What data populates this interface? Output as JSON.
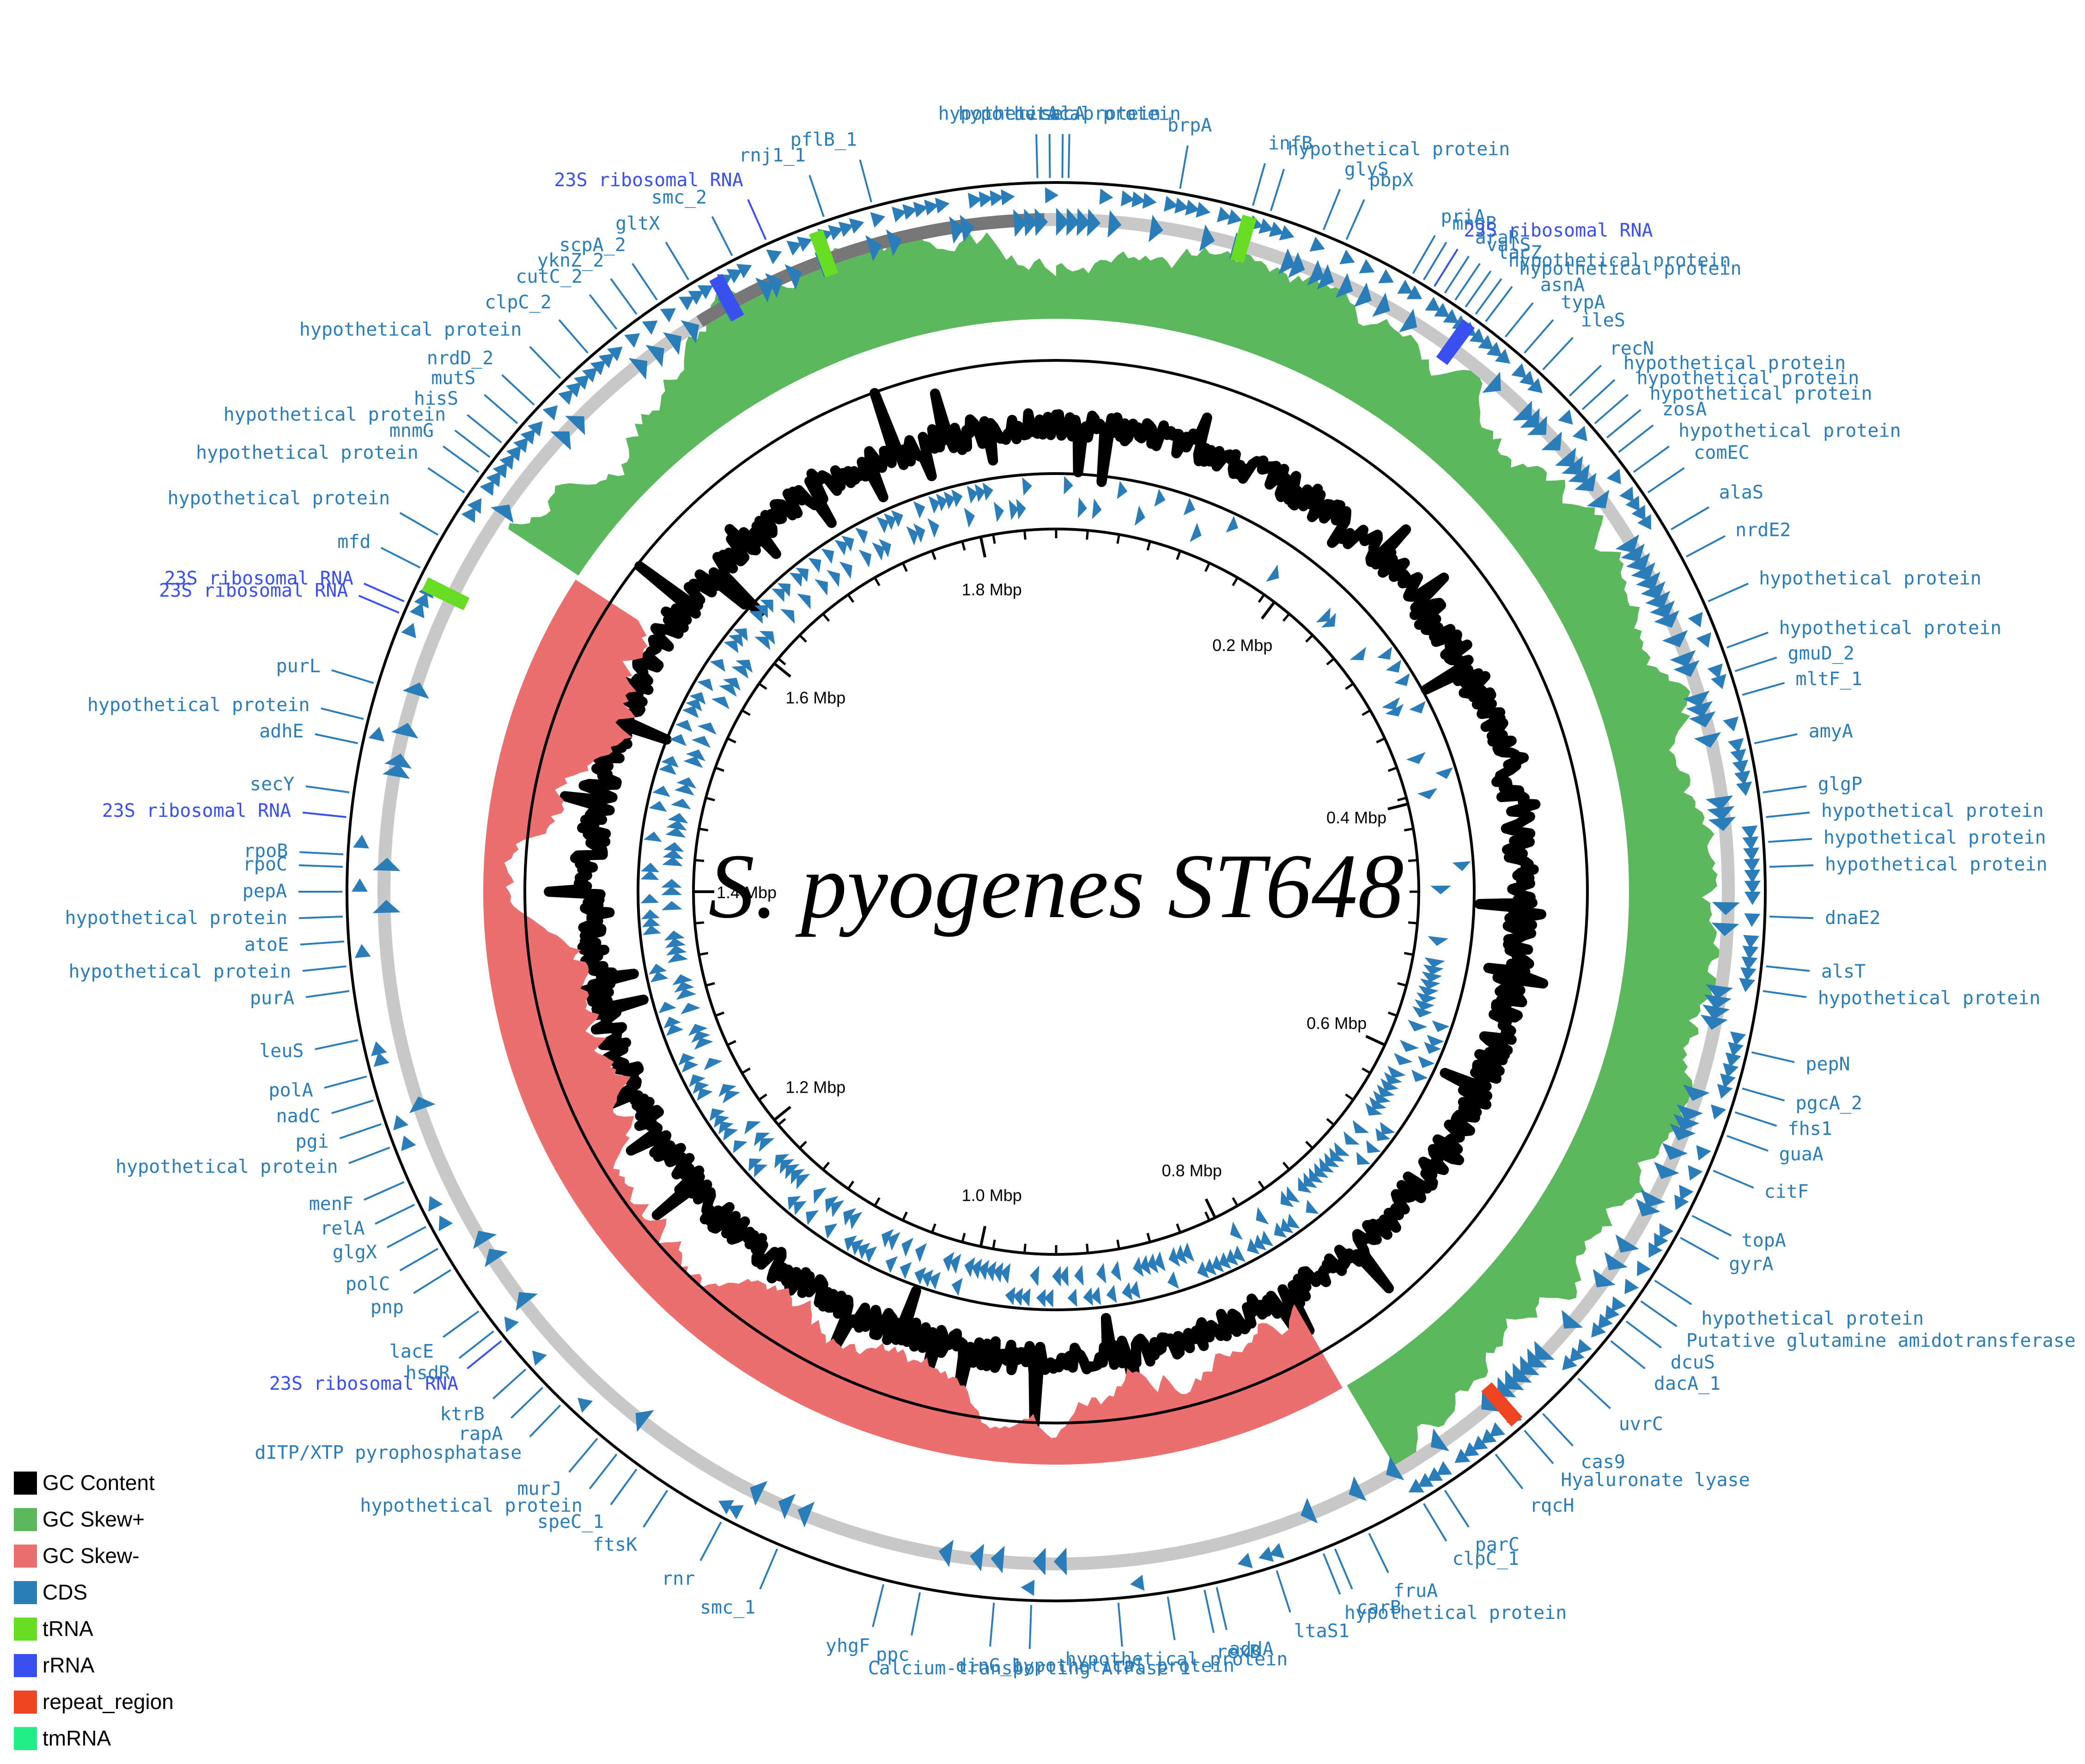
{
  "title": "S. pyogenes ST648",
  "colors": {
    "gc_content": "#000000",
    "gc_skew_pos": "#5cb85c",
    "gc_skew_neg": "#ec6f6f",
    "cds": "#2a7db8",
    "trna": "#66dd22",
    "rrna": "#3a4ff0",
    "repeat_region": "#ee4422",
    "tmrna": "#22ee88",
    "gene_label": "#2a7db8",
    "rrna_label": "#3a4ff0"
  },
  "legend": [
    {
      "label": "GC Content",
      "color": "#000000"
    },
    {
      "label": "GC Skew+",
      "color": "#5cb85c"
    },
    {
      "label": "GC Skew-",
      "color": "#ec6f6f"
    },
    {
      "label": "CDS",
      "color": "#2a7db8"
    },
    {
      "label": "tRNA",
      "color": "#66dd22"
    },
    {
      "label": "rRNA",
      "color": "#3a4ff0"
    },
    {
      "label": "repeat_region",
      "color": "#ee4422"
    },
    {
      "label": "tmRNA",
      "color": "#22ee88"
    }
  ],
  "ticks": [
    {
      "label": "0.2 Mbp",
      "angle_deg": 37
    },
    {
      "label": "0.4 Mbp",
      "angle_deg": 76
    },
    {
      "label": "0.6 Mbp",
      "angle_deg": 115
    },
    {
      "label": "0.8 Mbp",
      "angle_deg": 154
    },
    {
      "label": "1.0 Mbp",
      "angle_deg": 192
    },
    {
      "label": "1.2 Mbp",
      "angle_deg": 231
    },
    {
      "label": "1.4 Mbp",
      "angle_deg": 270
    },
    {
      "label": "1.6 Mbp",
      "angle_deg": 309
    },
    {
      "label": "1.8 Mbp",
      "angle_deg": 348
    }
  ],
  "gene_labels": [
    {
      "text": "secA",
      "type": "CDS",
      "angle_deg": 0.5
    },
    {
      "text": "uvrA",
      "type": "CDS",
      "angle_deg": -1.5
    },
    {
      "text": "hypothetical protein",
      "type": "CDS",
      "angle_deg": -0.5
    },
    {
      "text": "hypothetical protein",
      "type": "CDS",
      "angle_deg": 1.0
    },
    {
      "text": "brpA",
      "type": "CDS",
      "angle_deg": 10
    },
    {
      "text": "infB",
      "type": "CDS",
      "angle_deg": 16
    },
    {
      "text": "hypothetical protein",
      "type": "CDS",
      "angle_deg": 17.5
    },
    {
      "text": "glyS",
      "type": "CDS",
      "angle_deg": 22
    },
    {
      "text": "pbpX",
      "type": "CDS",
      "angle_deg": 24
    },
    {
      "text": "priA",
      "type": "CDS",
      "angle_deg": 30
    },
    {
      "text": "mngB",
      "type": "CDS",
      "angle_deg": 31
    },
    {
      "text": "23S ribosomal RNA",
      "type": "rRNA",
      "angle_deg": 32
    },
    {
      "text": "araR",
      "type": "CDS",
      "angle_deg": 33
    },
    {
      "text": "lacZ",
      "type": "CDS",
      "angle_deg": 35
    },
    {
      "text": "valS",
      "type": "CDS",
      "angle_deg": 34
    },
    {
      "text": "hypothetical protein",
      "type": "CDS",
      "angle_deg": 36
    },
    {
      "text": "hypothetical protein",
      "type": "CDS",
      "angle_deg": 37
    },
    {
      "text": "asnA",
      "type": "CDS",
      "angle_deg": 39
    },
    {
      "text": "typA",
      "type": "CDS",
      "angle_deg": 41
    },
    {
      "text": "ileS",
      "type": "CDS",
      "angle_deg": 43
    },
    {
      "text": "recN",
      "type": "CDS",
      "angle_deg": 46
    },
    {
      "text": "hypothetical protein",
      "type": "CDS",
      "angle_deg": 47.5
    },
    {
      "text": "hypothetical protein",
      "type": "CDS",
      "angle_deg": 49
    },
    {
      "text": "hypothetical protein",
      "type": "CDS",
      "angle_deg": 50.5
    },
    {
      "text": "zosA",
      "type": "CDS",
      "angle_deg": 52
    },
    {
      "text": "hypothetical protein",
      "type": "CDS",
      "angle_deg": 54
    },
    {
      "text": "comEC",
      "type": "CDS",
      "angle_deg": 56
    },
    {
      "text": "alaS",
      "type": "CDS",
      "angle_deg": 59.5
    },
    {
      "text": "nrdE2",
      "type": "CDS",
      "angle_deg": 62
    },
    {
      "text": "hypothetical protein",
      "type": "CDS",
      "angle_deg": 66
    },
    {
      "text": "hypothetical protein",
      "type": "CDS",
      "angle_deg": 70
    },
    {
      "text": "gmuD_2",
      "type": "CDS",
      "angle_deg": 72
    },
    {
      "text": "mltF_1",
      "type": "CDS",
      "angle_deg": 74
    },
    {
      "text": "amyA",
      "type": "CDS",
      "angle_deg": 78
    },
    {
      "text": "glgP",
      "type": "CDS",
      "angle_deg": 82
    },
    {
      "text": "hypothetical protein",
      "type": "CDS",
      "angle_deg": 84
    },
    {
      "text": "hypothetical protein",
      "type": "CDS",
      "angle_deg": 86
    },
    {
      "text": "hypothetical protein",
      "type": "CDS",
      "angle_deg": 88
    },
    {
      "text": "dnaE2",
      "type": "CDS",
      "angle_deg": 92
    },
    {
      "text": "alsT",
      "type": "CDS",
      "angle_deg": 96
    },
    {
      "text": "hypothetical protein",
      "type": "CDS",
      "angle_deg": 98
    },
    {
      "text": "pepN",
      "type": "CDS",
      "angle_deg": 103
    },
    {
      "text": "pgcA_2",
      "type": "CDS",
      "angle_deg": 106
    },
    {
      "text": "fhs1",
      "type": "CDS",
      "angle_deg": 108
    },
    {
      "text": "guaA",
      "type": "CDS",
      "angle_deg": 110
    },
    {
      "text": "citF",
      "type": "CDS",
      "angle_deg": 113
    },
    {
      "text": "topA",
      "type": "CDS",
      "angle_deg": 117
    },
    {
      "text": "gyrA",
      "type": "CDS",
      "angle_deg": 119
    },
    {
      "text": "hypothetical protein",
      "type": "CDS",
      "angle_deg": 123
    },
    {
      "text": "Putative glutamine amidotransferase",
      "type": "CDS",
      "angle_deg": 125
    },
    {
      "text": "dcuS",
      "type": "CDS",
      "angle_deg": 127
    },
    {
      "text": "dacA_1",
      "type": "CDS",
      "angle_deg": 129
    },
    {
      "text": "uvrC",
      "type": "CDS",
      "angle_deg": 133
    },
    {
      "text": "cas9",
      "type": "CDS",
      "angle_deg": 137
    },
    {
      "text": "Hyaluronate lyase",
      "type": "CDS",
      "angle_deg": 139
    },
    {
      "text": "rqcH",
      "type": "CDS",
      "angle_deg": 142
    },
    {
      "text": "parC",
      "type": "CDS",
      "angle_deg": 147
    },
    {
      "text": "clpC_1",
      "type": "CDS",
      "angle_deg": 149
    },
    {
      "text": "fruA",
      "type": "CDS",
      "angle_deg": 154
    },
    {
      "text": "carB",
      "type": "CDS",
      "angle_deg": 157
    },
    {
      "text": "hypothetical protein",
      "type": "CDS",
      "angle_deg": 158
    },
    {
      "text": "ltaS1",
      "type": "CDS",
      "angle_deg": 162
    },
    {
      "text": "addA",
      "type": "CDS",
      "angle_deg": 167
    },
    {
      "text": "rexB",
      "type": "CDS",
      "angle_deg": 168
    },
    {
      "text": "hypothetical protein",
      "type": "CDS",
      "angle_deg": 171
    },
    {
      "text": "hypothetical protein",
      "type": "CDS",
      "angle_deg": 175
    },
    {
      "text": "Calcium-transporting ATPase 1",
      "type": "CDS",
      "angle_deg": 182
    },
    {
      "text": "dinG_1",
      "type": "CDS",
      "angle_deg": 185
    },
    {
      "text": "ppc",
      "type": "CDS",
      "angle_deg": 191
    },
    {
      "text": "yhgF",
      "type": "CDS",
      "angle_deg": 194
    },
    {
      "text": "smc_1",
      "type": "CDS",
      "angle_deg": 203
    },
    {
      "text": "rnr",
      "type": "CDS",
      "angle_deg": 208
    },
    {
      "text": "ftsK",
      "type": "CDS",
      "angle_deg": 213
    },
    {
      "text": "speC_1",
      "type": "CDS",
      "angle_deg": 216
    },
    {
      "text": "hypothetical protein",
      "type": "CDS",
      "angle_deg": 218
    },
    {
      "text": "murJ",
      "type": "CDS",
      "angle_deg": 220
    },
    {
      "text": "dITP/XTP pyrophosphatase",
      "type": "CDS",
      "angle_deg": 224
    },
    {
      "text": "rapA",
      "type": "CDS",
      "angle_deg": 226
    },
    {
      "text": "ktrB",
      "type": "CDS",
      "angle_deg": 228
    },
    {
      "text": "23S ribosomal RNA",
      "type": "rRNA",
      "angle_deg": 231
    },
    {
      "text": "hsdR",
      "type": "CDS",
      "angle_deg": 232
    },
    {
      "text": "lacE",
      "type": "CDS",
      "angle_deg": 234
    },
    {
      "text": "pnp",
      "type": "CDS",
      "angle_deg": 238
    },
    {
      "text": "polC",
      "type": "CDS",
      "angle_deg": 240
    },
    {
      "text": "glgX",
      "type": "CDS",
      "angle_deg": 242
    },
    {
      "text": "relA",
      "type": "CDS",
      "angle_deg": 244
    },
    {
      "text": "menF",
      "type": "CDS",
      "angle_deg": 246
    },
    {
      "text": "hypothetical protein",
      "type": "CDS",
      "angle_deg": 249
    },
    {
      "text": "pgi",
      "type": "CDS",
      "angle_deg": 251
    },
    {
      "text": "nadC",
      "type": "CDS",
      "angle_deg": 253
    },
    {
      "text": "polA",
      "type": "CDS",
      "angle_deg": 255
    },
    {
      "text": "leuS",
      "type": "CDS",
      "angle_deg": 258
    },
    {
      "text": "purA",
      "type": "CDS",
      "angle_deg": 262
    },
    {
      "text": "hypothetical protein",
      "type": "CDS",
      "angle_deg": 264
    },
    {
      "text": "atoE",
      "type": "CDS",
      "angle_deg": 266
    },
    {
      "text": "hypothetical protein",
      "type": "CDS",
      "angle_deg": 268
    },
    {
      "text": "pepA",
      "type": "CDS",
      "angle_deg": 270
    },
    {
      "text": "rpoC",
      "type": "CDS",
      "angle_deg": 272
    },
    {
      "text": "rpoB",
      "type": "CDS",
      "angle_deg": 273
    },
    {
      "text": "23S ribosomal RNA",
      "type": "rRNA",
      "angle_deg": 276
    },
    {
      "text": "secY",
      "type": "CDS",
      "angle_deg": 278
    },
    {
      "text": "adhE",
      "type": "CDS",
      "angle_deg": 282
    },
    {
      "text": "hypothetical protein",
      "type": "CDS",
      "angle_deg": 284
    },
    {
      "text": "purL",
      "type": "CDS",
      "angle_deg": 287
    },
    {
      "text": "23S ribosomal RNA",
      "type": "rRNA",
      "angle_deg": 293
    },
    {
      "text": "23S ribosomal RNA",
      "type": "rRNA",
      "angle_deg": 294
    },
    {
      "text": "mfd",
      "type": "CDS",
      "angle_deg": 297
    },
    {
      "text": "hypothetical protein",
      "type": "CDS",
      "angle_deg": 300
    },
    {
      "text": "hypothetical protein",
      "type": "CDS",
      "angle_deg": 304
    },
    {
      "text": "mnmG",
      "type": "CDS",
      "angle_deg": 306
    },
    {
      "text": "hypothetical protein",
      "type": "CDS",
      "angle_deg": 307.5
    },
    {
      "text": "hisS",
      "type": "CDS",
      "angle_deg": 309
    },
    {
      "text": "mutS",
      "type": "CDS",
      "angle_deg": 311
    },
    {
      "text": "nrdD_2",
      "type": "CDS",
      "angle_deg": 313
    },
    {
      "text": "hypothetical protein",
      "type": "CDS",
      "angle_deg": 316
    },
    {
      "text": "clpC_2",
      "type": "CDS",
      "angle_deg": 319
    },
    {
      "text": "cutC_2",
      "type": "CDS",
      "angle_deg": 322
    },
    {
      "text": "yknZ_2",
      "type": "CDS",
      "angle_deg": 324
    },
    {
      "text": "scpA_2",
      "type": "CDS",
      "angle_deg": 326
    },
    {
      "text": "gltX",
      "type": "CDS",
      "angle_deg": 329
    },
    {
      "text": "smc_2",
      "type": "CDS",
      "angle_deg": 333
    },
    {
      "text": "23S ribosomal RNA",
      "type": "rRNA",
      "angle_deg": 336
    },
    {
      "text": "rnj1_1",
      "type": "CDS",
      "angle_deg": 341
    },
    {
      "text": "pflB_1",
      "type": "CDS",
      "angle_deg": 345
    }
  ]
}
